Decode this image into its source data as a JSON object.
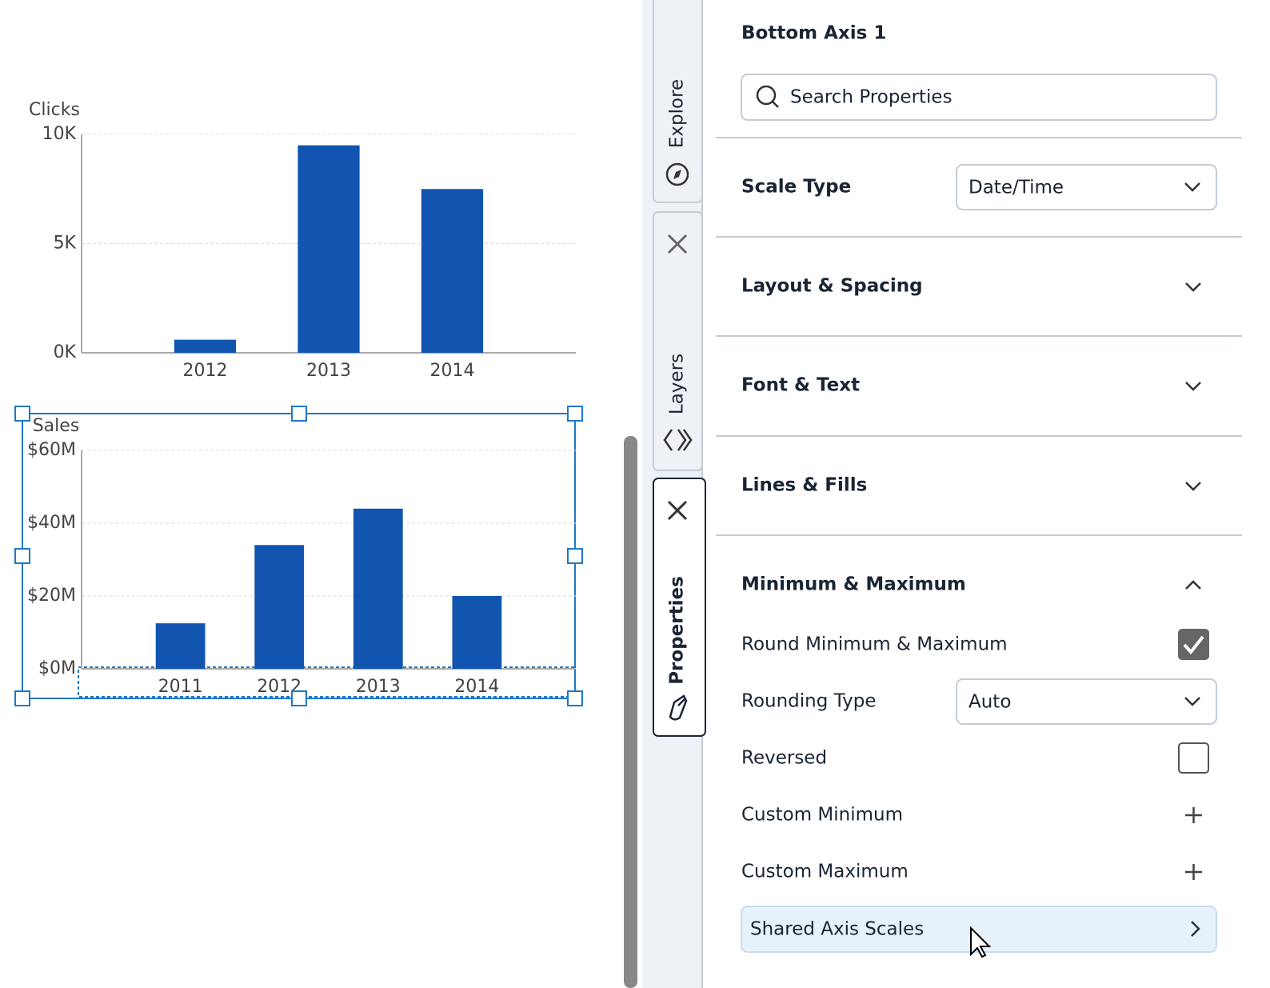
{
  "chart_data": [
    {
      "type": "bar",
      "y_label": "Clicks",
      "categories": [
        "2012",
        "2013",
        "2014"
      ],
      "values": [
        600,
        9500,
        7500
      ],
      "color": "#1155b0",
      "ylim": [
        0,
        10000
      ],
      "yticks": [
        {
          "value": 0,
          "label": "0K"
        },
        {
          "value": 5000,
          "label": "5K"
        },
        {
          "value": 10000,
          "label": "10K"
        }
      ],
      "grid": true
    },
    {
      "type": "bar",
      "y_label": "Sales",
      "categories": [
        "2011",
        "2012",
        "2013",
        "2014"
      ],
      "values": [
        12500000,
        34000000,
        44000000,
        20000000
      ],
      "color": "#1155b0",
      "ylim": [
        0,
        60000000
      ],
      "yticks": [
        {
          "value": 0,
          "label": "$0M"
        },
        {
          "value": 20000000,
          "label": "$20M"
        },
        {
          "value": 40000000,
          "label": "$40M"
        },
        {
          "value": 60000000,
          "label": "$60M"
        }
      ],
      "grid": true
    }
  ],
  "tabs": [
    "Explore",
    "Layers",
    "Properties"
  ],
  "panel": {
    "title": "Bottom Axis 1",
    "search_placeholder": "Search Properties",
    "scale_type": {
      "label": "Scale Type",
      "value": "Date/Time"
    },
    "sections": [
      "Layout & Spacing",
      "Font & Text",
      "Lines & Fills",
      "Minimum & Maximum"
    ],
    "rows": [
      {
        "label": "Round Minimum & Maximum",
        "checked": true
      },
      {
        "label": "Rounding Type",
        "value": "Auto"
      },
      {
        "label": "Reversed",
        "checked": false
      },
      {
        "label": "Custom Minimum"
      },
      {
        "label": "Custom Maximum"
      }
    ],
    "button": "Shared Axis Scales"
  }
}
